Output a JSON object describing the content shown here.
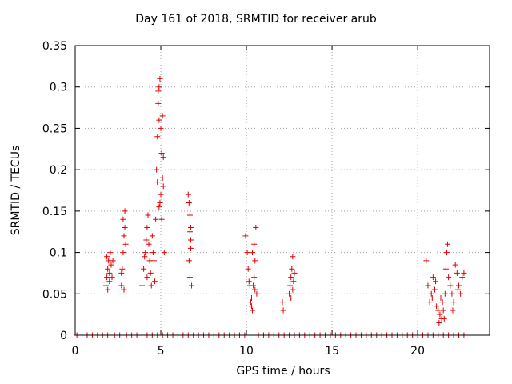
{
  "chart_data": {
    "type": "scatter",
    "title": "Day 161 of 2018, SRMTID for receiver arub",
    "xlabel": "GPS time / hours",
    "ylabel": "SRMTID / TECUs",
    "xlim": [
      0,
      24.2
    ],
    "ylim": [
      0,
      0.35
    ],
    "xticks": [
      0,
      5,
      10,
      15,
      20
    ],
    "xtick_labels": [
      "0",
      "5",
      "10",
      "15",
      "20"
    ],
    "yticks": [
      0,
      0.05,
      0.1,
      0.15,
      0.2,
      0.25,
      0.3,
      0.35
    ],
    "ytick_labels": [
      "0",
      "0.05",
      "0.1",
      "0.15",
      "0.2",
      "0.25",
      "0.3",
      "0.35"
    ],
    "grid": true,
    "marker": "+",
    "color": "#e00000",
    "series": [
      {
        "name": "SRMTID",
        "points": [
          [
            1.8,
            0.06
          ],
          [
            1.85,
            0.07
          ],
          [
            1.9,
            0.08
          ],
          [
            1.95,
            0.09
          ],
          [
            2.0,
            0.075
          ],
          [
            2.05,
            0.1
          ],
          [
            2.1,
            0.085
          ],
          [
            1.9,
            0.055
          ],
          [
            2.0,
            0.065
          ],
          [
            2.2,
            0.09
          ],
          [
            2.15,
            0.07
          ],
          [
            1.85,
            0.095
          ],
          [
            2.7,
            0.06
          ],
          [
            2.75,
            0.08
          ],
          [
            2.8,
            0.1
          ],
          [
            2.85,
            0.12
          ],
          [
            2.9,
            0.15
          ],
          [
            2.8,
            0.14
          ],
          [
            2.95,
            0.11
          ],
          [
            2.7,
            0.075
          ],
          [
            2.85,
            0.055
          ],
          [
            2.9,
            0.13
          ],
          [
            3.9,
            0.06
          ],
          [
            4.0,
            0.08
          ],
          [
            4.1,
            0.1
          ],
          [
            4.2,
            0.13
          ],
          [
            4.25,
            0.145
          ],
          [
            4.3,
            0.11
          ],
          [
            4.35,
            0.09
          ],
          [
            4.4,
            0.075
          ],
          [
            4.5,
            0.12
          ],
          [
            4.55,
            0.1
          ],
          [
            4.6,
            0.09
          ],
          [
            4.65,
            0.065
          ],
          [
            4.7,
            0.14
          ],
          [
            4.2,
            0.07
          ],
          [
            4.05,
            0.095
          ],
          [
            4.45,
            0.06
          ],
          [
            4.15,
            0.115
          ],
          [
            4.75,
            0.2
          ],
          [
            4.8,
            0.24
          ],
          [
            4.85,
            0.28
          ],
          [
            4.9,
            0.3
          ],
          [
            4.95,
            0.31
          ],
          [
            4.85,
            0.295
          ],
          [
            4.9,
            0.26
          ],
          [
            5.0,
            0.25
          ],
          [
            5.05,
            0.22
          ],
          [
            5.1,
            0.19
          ],
          [
            5.1,
            0.265
          ],
          [
            5.15,
            0.18
          ],
          [
            5.0,
            0.17
          ],
          [
            4.95,
            0.16
          ],
          [
            5.05,
            0.14
          ],
          [
            5.2,
            0.1
          ],
          [
            5.15,
            0.215
          ],
          [
            4.8,
            0.185
          ],
          [
            4.9,
            0.155
          ],
          [
            6.6,
            0.17
          ],
          [
            6.65,
            0.16
          ],
          [
            6.7,
            0.145
          ],
          [
            6.75,
            0.13
          ],
          [
            6.7,
            0.125
          ],
          [
            6.75,
            0.105
          ],
          [
            6.65,
            0.09
          ],
          [
            6.7,
            0.07
          ],
          [
            6.8,
            0.06
          ],
          [
            6.75,
            0.115
          ],
          [
            9.95,
            0.12
          ],
          [
            10.05,
            0.1
          ],
          [
            10.1,
            0.08
          ],
          [
            10.2,
            0.06
          ],
          [
            10.3,
            0.045
          ],
          [
            10.35,
            0.03
          ],
          [
            10.4,
            0.06
          ],
          [
            10.45,
            0.07
          ],
          [
            10.5,
            0.09
          ],
          [
            10.55,
            0.13
          ],
          [
            10.6,
            0.05
          ],
          [
            10.25,
            0.04
          ],
          [
            10.15,
            0.065
          ],
          [
            10.35,
            0.1
          ],
          [
            10.45,
            0.11
          ],
          [
            10.3,
            0.035
          ],
          [
            10.5,
            0.055
          ],
          [
            12.1,
            0.04
          ],
          [
            12.15,
            0.03
          ],
          [
            12.5,
            0.05
          ],
          [
            12.55,
            0.06
          ],
          [
            12.6,
            0.07
          ],
          [
            12.65,
            0.08
          ],
          [
            12.7,
            0.095
          ],
          [
            12.75,
            0.065
          ],
          [
            12.6,
            0.045
          ],
          [
            12.7,
            0.055
          ],
          [
            12.8,
            0.075
          ],
          [
            20.5,
            0.09
          ],
          [
            20.6,
            0.06
          ],
          [
            20.7,
            0.04
          ],
          [
            20.8,
            0.05
          ],
          [
            20.9,
            0.07
          ],
          [
            21.0,
            0.055
          ],
          [
            21.1,
            0.035
          ],
          [
            21.2,
            0.03
          ],
          [
            21.3,
            0.025
          ],
          [
            21.4,
            0.02
          ],
          [
            21.5,
            0.03
          ],
          [
            21.6,
            0.05
          ],
          [
            21.65,
            0.08
          ],
          [
            21.7,
            0.1
          ],
          [
            21.75,
            0.11
          ],
          [
            21.8,
            0.07
          ],
          [
            21.9,
            0.06
          ],
          [
            22.0,
            0.05
          ],
          [
            22.1,
            0.04
          ],
          [
            22.2,
            0.085
          ],
          [
            22.3,
            0.075
          ],
          [
            22.4,
            0.06
          ],
          [
            22.5,
            0.05
          ],
          [
            22.6,
            0.07
          ],
          [
            22.7,
            0.075
          ],
          [
            21.25,
            0.015
          ],
          [
            21.45,
            0.04
          ],
          [
            21.55,
            0.02
          ],
          [
            20.85,
            0.045
          ],
          [
            21.05,
            0.065
          ],
          [
            21.35,
            0.045
          ],
          [
            22.05,
            0.03
          ],
          [
            22.35,
            0.055
          ]
        ]
      },
      {
        "name": "SRMTID (zero baseline)",
        "points": [
          [
            0.1,
            0
          ],
          [
            0.4,
            0
          ],
          [
            0.7,
            0
          ],
          [
            1.0,
            0
          ],
          [
            1.3,
            0
          ],
          [
            1.6,
            0
          ],
          [
            1.9,
            0
          ],
          [
            2.3,
            0
          ],
          [
            2.6,
            0
          ],
          [
            3.0,
            0
          ],
          [
            3.3,
            0
          ],
          [
            3.6,
            0
          ],
          [
            3.9,
            0
          ],
          [
            4.2,
            0
          ],
          [
            4.5,
            0
          ],
          [
            4.8,
            0
          ],
          [
            5.1,
            0
          ],
          [
            5.4,
            0
          ],
          [
            5.7,
            0
          ],
          [
            6.0,
            0
          ],
          [
            6.3,
            0
          ],
          [
            6.6,
            0
          ],
          [
            6.9,
            0
          ],
          [
            7.2,
            0
          ],
          [
            7.5,
            0
          ],
          [
            7.8,
            0
          ],
          [
            8.1,
            0
          ],
          [
            8.4,
            0
          ],
          [
            8.7,
            0
          ],
          [
            9.0,
            0
          ],
          [
            9.3,
            0
          ],
          [
            9.6,
            0
          ],
          [
            9.9,
            0
          ],
          [
            10.7,
            0
          ],
          [
            11.0,
            0
          ],
          [
            11.3,
            0
          ],
          [
            11.6,
            0
          ],
          [
            11.9,
            0
          ],
          [
            12.2,
            0
          ],
          [
            12.5,
            0
          ],
          [
            12.8,
            0
          ],
          [
            13.1,
            0
          ],
          [
            13.4,
            0
          ],
          [
            13.7,
            0
          ],
          [
            14.0,
            0
          ],
          [
            14.3,
            0
          ],
          [
            14.6,
            0
          ],
          [
            14.9,
            0
          ],
          [
            15.2,
            0
          ],
          [
            15.5,
            0
          ],
          [
            15.8,
            0
          ],
          [
            16.1,
            0
          ],
          [
            16.4,
            0
          ],
          [
            16.7,
            0
          ],
          [
            17.0,
            0
          ],
          [
            17.3,
            0
          ],
          [
            17.6,
            0
          ],
          [
            17.9,
            0
          ],
          [
            18.2,
            0
          ],
          [
            18.5,
            0
          ],
          [
            18.8,
            0
          ],
          [
            19.1,
            0
          ],
          [
            19.4,
            0
          ],
          [
            19.7,
            0
          ],
          [
            20.0,
            0
          ],
          [
            20.3,
            0
          ],
          [
            20.6,
            0
          ],
          [
            20.9,
            0
          ],
          [
            21.2,
            0
          ],
          [
            21.5,
            0
          ],
          [
            21.8,
            0
          ],
          [
            22.1,
            0
          ],
          [
            22.4,
            0
          ],
          [
            22.7,
            0
          ]
        ]
      }
    ]
  }
}
